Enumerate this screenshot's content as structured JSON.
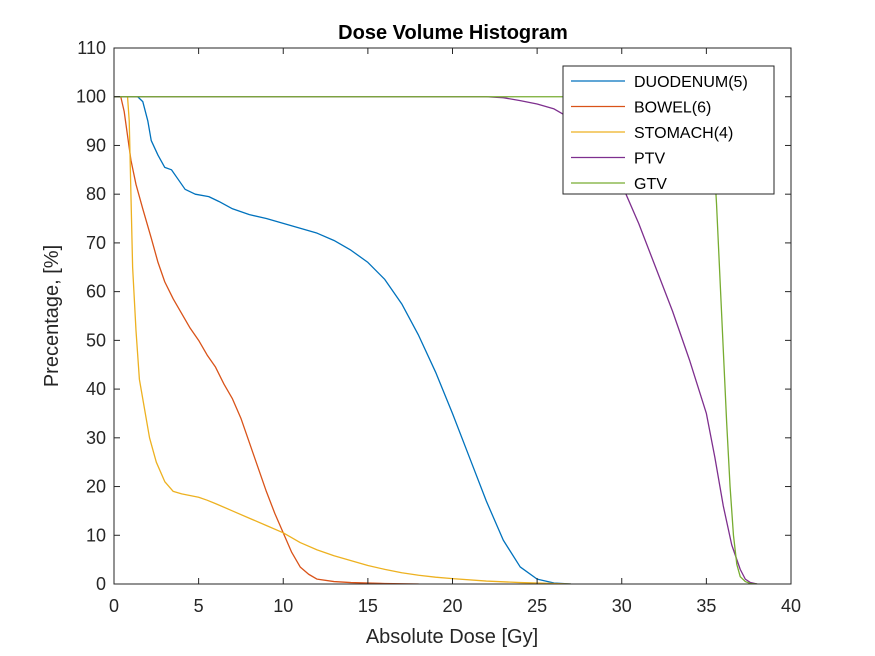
{
  "chart_data": {
    "type": "line",
    "title": "Dose Volume Histogram",
    "xlabel": "Absolute Dose [Gy]",
    "ylabel": "Precentage, [%]",
    "xlim": [
      0,
      40
    ],
    "ylim": [
      0,
      110
    ],
    "xticks": [
      "0",
      "5",
      "10",
      "15",
      "20",
      "25",
      "30",
      "35",
      "40"
    ],
    "yticks": [
      "0",
      "10",
      "20",
      "30",
      "40",
      "50",
      "60",
      "70",
      "80",
      "90",
      "100",
      "110"
    ],
    "grid": false,
    "legend_position": "top-right",
    "series": [
      {
        "name": "DUODENUM(5)",
        "color": "#0072BD",
        "points": [
          [
            0,
            100
          ],
          [
            1.4,
            100
          ],
          [
            1.7,
            99
          ],
          [
            2,
            95
          ],
          [
            2.2,
            91
          ],
          [
            2.6,
            88
          ],
          [
            3,
            85.5
          ],
          [
            3.4,
            85
          ],
          [
            3.8,
            83
          ],
          [
            4.2,
            81
          ],
          [
            4.8,
            80
          ],
          [
            5.6,
            79.5
          ],
          [
            6.2,
            78.5
          ],
          [
            7,
            77
          ],
          [
            8,
            75.8
          ],
          [
            9,
            75
          ],
          [
            10,
            74
          ],
          [
            11,
            73
          ],
          [
            12,
            72
          ],
          [
            13,
            70.5
          ],
          [
            14,
            68.5
          ],
          [
            15,
            66
          ],
          [
            16,
            62.5
          ],
          [
            17,
            57.5
          ],
          [
            18,
            51
          ],
          [
            19,
            43.5
          ],
          [
            20,
            35
          ],
          [
            21,
            26
          ],
          [
            22,
            17
          ],
          [
            23,
            9
          ],
          [
            24,
            3.5
          ],
          [
            25,
            1
          ],
          [
            26,
            0.2
          ],
          [
            27,
            0
          ]
        ]
      },
      {
        "name": "BOWEL(6)",
        "color": "#D95319",
        "points": [
          [
            0,
            100
          ],
          [
            0.4,
            100
          ],
          [
            0.6,
            97
          ],
          [
            0.8,
            92
          ],
          [
            1,
            87
          ],
          [
            1.3,
            82
          ],
          [
            1.7,
            77
          ],
          [
            2.2,
            71
          ],
          [
            2.6,
            66
          ],
          [
            3,
            62
          ],
          [
            3.5,
            58.5
          ],
          [
            4,
            55.5
          ],
          [
            4.5,
            52.5
          ],
          [
            5,
            50
          ],
          [
            5.5,
            47
          ],
          [
            6,
            44.5
          ],
          [
            6.5,
            41
          ],
          [
            7,
            38
          ],
          [
            7.5,
            34
          ],
          [
            8,
            29
          ],
          [
            8.5,
            24
          ],
          [
            9,
            19
          ],
          [
            9.5,
            14.5
          ],
          [
            10,
            10.5
          ],
          [
            10.5,
            6.5
          ],
          [
            11,
            3.5
          ],
          [
            11.5,
            2
          ],
          [
            12,
            1
          ],
          [
            13,
            0.5
          ],
          [
            14,
            0.3
          ],
          [
            16,
            0.1
          ],
          [
            18,
            0
          ]
        ]
      },
      {
        "name": "STOMACH(4)",
        "color": "#EDB120",
        "points": [
          [
            0,
            100
          ],
          [
            0.8,
            100
          ],
          [
            0.9,
            95
          ],
          [
            1,
            80
          ],
          [
            1.1,
            65
          ],
          [
            1.3,
            52
          ],
          [
            1.5,
            42
          ],
          [
            1.8,
            36
          ],
          [
            2.1,
            30
          ],
          [
            2.5,
            25
          ],
          [
            3,
            21
          ],
          [
            3.5,
            19
          ],
          [
            4,
            18.5
          ],
          [
            5,
            17.8
          ],
          [
            5.5,
            17.2
          ],
          [
            6,
            16.5
          ],
          [
            7,
            15
          ],
          [
            8,
            13.5
          ],
          [
            9,
            12
          ],
          [
            10,
            10.5
          ],
          [
            11,
            8.5
          ],
          [
            12,
            7
          ],
          [
            13,
            5.8
          ],
          [
            14,
            4.8
          ],
          [
            15,
            3.8
          ],
          [
            16,
            3
          ],
          [
            17,
            2.3
          ],
          [
            18,
            1.8
          ],
          [
            19,
            1.4
          ],
          [
            20,
            1.1
          ],
          [
            22,
            0.6
          ],
          [
            24,
            0.3
          ],
          [
            26,
            0.1
          ],
          [
            27,
            0
          ]
        ]
      },
      {
        "name": "PTV",
        "color": "#7E2F8E",
        "points": [
          [
            0,
            100
          ],
          [
            22,
            100
          ],
          [
            23,
            99.8
          ],
          [
            24,
            99.2
          ],
          [
            25,
            98.5
          ],
          [
            26,
            97.5
          ],
          [
            27,
            95.5
          ],
          [
            28,
            92.5
          ],
          [
            29,
            88
          ],
          [
            30,
            82
          ],
          [
            31,
            74
          ],
          [
            32,
            65
          ],
          [
            33,
            56
          ],
          [
            34,
            46
          ],
          [
            35,
            35
          ],
          [
            35.5,
            26
          ],
          [
            36,
            16
          ],
          [
            36.5,
            8
          ],
          [
            37,
            3
          ],
          [
            37.3,
            1
          ],
          [
            37.6,
            0.3
          ],
          [
            38,
            0
          ]
        ]
      },
      {
        "name": "GTV",
        "color": "#77AC30",
        "points": [
          [
            0,
            100
          ],
          [
            34,
            100
          ],
          [
            34.5,
            99.8
          ],
          [
            35,
            99
          ],
          [
            35.2,
            97
          ],
          [
            35.4,
            90
          ],
          [
            35.6,
            78
          ],
          [
            35.8,
            63
          ],
          [
            36,
            48
          ],
          [
            36.2,
            33
          ],
          [
            36.4,
            20
          ],
          [
            36.6,
            10
          ],
          [
            36.8,
            4
          ],
          [
            37,
            1.5
          ],
          [
            37.3,
            0.5
          ],
          [
            37.6,
            0.1
          ],
          [
            38,
            0
          ]
        ]
      }
    ]
  }
}
